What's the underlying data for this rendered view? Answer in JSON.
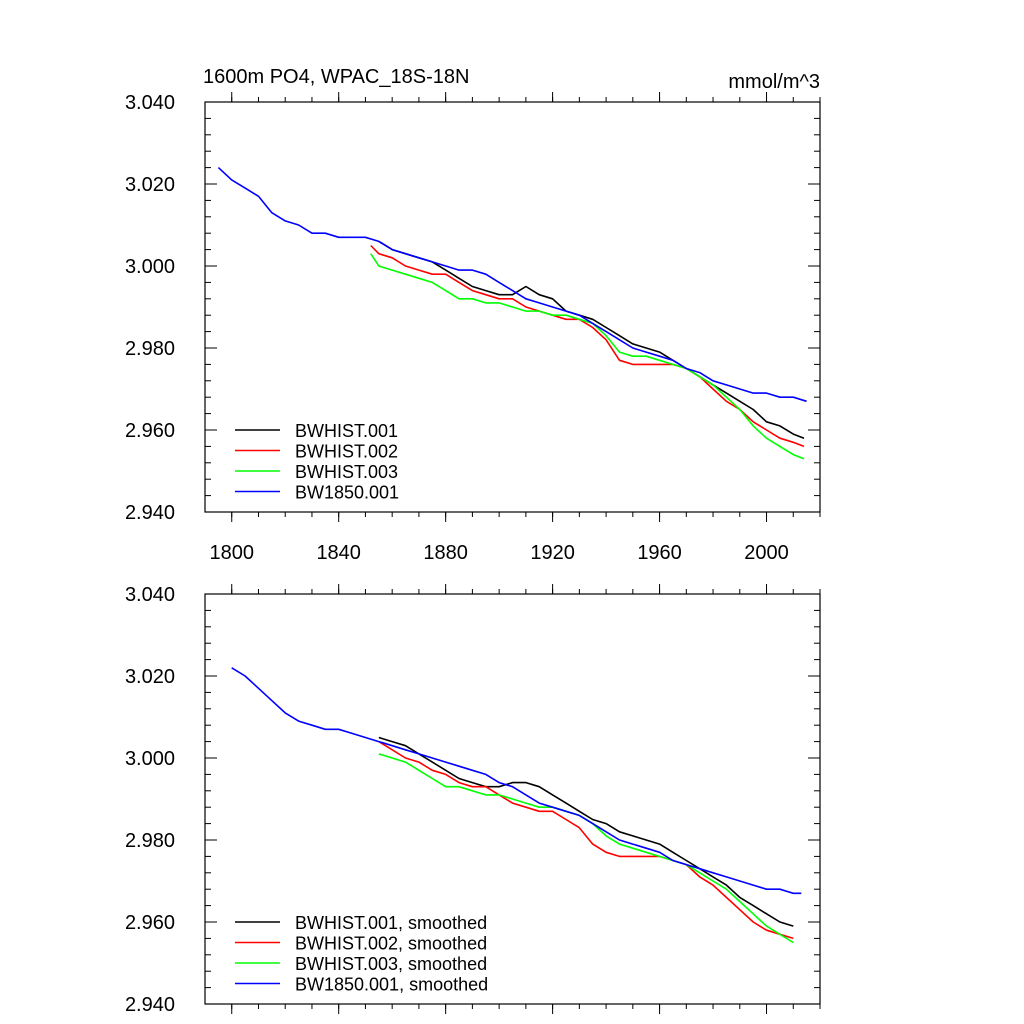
{
  "figure": {
    "title_left": "1600m PO4, WPAC_18S-18N",
    "title_right": "mmol/m^3"
  },
  "chart_data": [
    {
      "type": "line",
      "title": "1600m PO4, WPAC_18S-18N",
      "units": "mmol/m^3",
      "xlim": [
        1790,
        2020
      ],
      "ylim": [
        2.94,
        3.04
      ],
      "xticks": [
        1800,
        1840,
        1880,
        1920,
        1960,
        2000
      ],
      "xtick_labels": [
        "1800",
        "1840",
        "1880",
        "1920",
        "1960",
        "2000"
      ],
      "yticks": [
        2.94,
        2.96,
        2.98,
        3.0,
        3.02,
        3.04
      ],
      "ytick_labels": [
        "2.940",
        "2.960",
        "2.980",
        "3.000",
        "3.020",
        "3.040"
      ],
      "grid": false,
      "legend_position": "bottom-left",
      "series": [
        {
          "name": "BWHIST.001",
          "color": "#000000",
          "x": [
            1855,
            1860,
            1865,
            1870,
            1875,
            1880,
            1885,
            1890,
            1895,
            1900,
            1905,
            1910,
            1915,
            1920,
            1925,
            1930,
            1935,
            1940,
            1945,
            1950,
            1955,
            1960,
            1965,
            1970,
            1975,
            1980,
            1985,
            1990,
            1995,
            2000,
            2005,
            2010,
            2014
          ],
          "y": [
            3.006,
            3.004,
            3.003,
            3.002,
            3.001,
            2.999,
            2.997,
            2.995,
            2.994,
            2.993,
            2.993,
            2.995,
            2.993,
            2.992,
            2.989,
            2.988,
            2.987,
            2.985,
            2.983,
            2.981,
            2.98,
            2.979,
            2.977,
            2.975,
            2.973,
            2.971,
            2.969,
            2.967,
            2.965,
            2.962,
            2.961,
            2.959,
            2.958
          ]
        },
        {
          "name": "BWHIST.002",
          "color": "#ff0000",
          "x": [
            1852,
            1855,
            1860,
            1865,
            1870,
            1875,
            1880,
            1885,
            1890,
            1895,
            1900,
            1905,
            1910,
            1915,
            1920,
            1925,
            1930,
            1935,
            1940,
            1945,
            1950,
            1955,
            1960,
            1965,
            1970,
            1975,
            1980,
            1985,
            1990,
            1995,
            2000,
            2005,
            2010,
            2014
          ],
          "y": [
            3.005,
            3.003,
            3.002,
            3.0,
            2.999,
            2.998,
            2.998,
            2.996,
            2.994,
            2.993,
            2.992,
            2.992,
            2.99,
            2.989,
            2.988,
            2.987,
            2.987,
            2.985,
            2.982,
            2.977,
            2.976,
            2.976,
            2.976,
            2.976,
            2.975,
            2.973,
            2.97,
            2.967,
            2.965,
            2.962,
            2.96,
            2.958,
            2.957,
            2.956
          ]
        },
        {
          "name": "BWHIST.003",
          "color": "#00ff00",
          "x": [
            1852,
            1855,
            1860,
            1865,
            1870,
            1875,
            1880,
            1885,
            1890,
            1895,
            1900,
            1905,
            1910,
            1915,
            1920,
            1925,
            1930,
            1935,
            1940,
            1945,
            1950,
            1955,
            1960,
            1965,
            1970,
            1975,
            1980,
            1985,
            1990,
            1995,
            2000,
            2005,
            2010,
            2014
          ],
          "y": [
            3.003,
            3.0,
            2.999,
            2.998,
            2.997,
            2.996,
            2.994,
            2.992,
            2.992,
            2.991,
            2.991,
            2.99,
            2.989,
            2.989,
            2.988,
            2.988,
            2.987,
            2.986,
            2.983,
            2.979,
            2.978,
            2.978,
            2.977,
            2.976,
            2.975,
            2.973,
            2.971,
            2.968,
            2.965,
            2.961,
            2.958,
            2.956,
            2.954,
            2.953
          ]
        },
        {
          "name": "BW1850.001",
          "color": "#0000ff",
          "x": [
            1795,
            1800,
            1805,
            1810,
            1815,
            1820,
            1825,
            1830,
            1835,
            1840,
            1845,
            1850,
            1855,
            1860,
            1865,
            1870,
            1875,
            1880,
            1885,
            1890,
            1895,
            1900,
            1905,
            1910,
            1915,
            1920,
            1925,
            1930,
            1935,
            1940,
            1945,
            1950,
            1955,
            1960,
            1965,
            1970,
            1975,
            1980,
            1985,
            1990,
            1995,
            2000,
            2005,
            2010,
            2015
          ],
          "y": [
            3.024,
            3.021,
            3.019,
            3.017,
            3.013,
            3.011,
            3.01,
            3.008,
            3.008,
            3.007,
            3.007,
            3.007,
            3.006,
            3.004,
            3.003,
            3.002,
            3.001,
            3.0,
            2.999,
            2.999,
            2.998,
            2.996,
            2.994,
            2.992,
            2.991,
            2.99,
            2.989,
            2.988,
            2.986,
            2.984,
            2.982,
            2.98,
            2.979,
            2.978,
            2.977,
            2.975,
            2.974,
            2.972,
            2.971,
            2.97,
            2.969,
            2.969,
            2.968,
            2.968,
            2.967
          ]
        }
      ]
    },
    {
      "type": "line",
      "xlim": [
        1790,
        2020
      ],
      "ylim": [
        2.94,
        3.04
      ],
      "yticks": [
        2.94,
        2.96,
        2.98,
        3.0,
        3.02,
        3.04
      ],
      "ytick_labels": [
        "2.940",
        "2.960",
        "2.980",
        "3.000",
        "3.020",
        "3.040"
      ],
      "xticks": [
        1800,
        1840,
        1880,
        1920,
        1960,
        2000
      ],
      "grid": false,
      "legend_position": "bottom-left",
      "series": [
        {
          "name": "BWHIST.001, smoothed",
          "color": "#000000",
          "x": [
            1855,
            1860,
            1865,
            1870,
            1875,
            1880,
            1885,
            1890,
            1895,
            1900,
            1905,
            1910,
            1915,
            1920,
            1925,
            1930,
            1935,
            1940,
            1945,
            1950,
            1955,
            1960,
            1965,
            1970,
            1975,
            1980,
            1985,
            1990,
            1995,
            2000,
            2005,
            2010
          ],
          "y": [
            3.005,
            3.004,
            3.003,
            3.001,
            2.999,
            2.997,
            2.995,
            2.994,
            2.993,
            2.993,
            2.994,
            2.994,
            2.993,
            2.991,
            2.989,
            2.987,
            2.985,
            2.984,
            2.982,
            2.981,
            2.98,
            2.979,
            2.977,
            2.975,
            2.973,
            2.971,
            2.969,
            2.966,
            2.964,
            2.962,
            2.96,
            2.959
          ]
        },
        {
          "name": "BWHIST.002, smoothed",
          "color": "#ff0000",
          "x": [
            1855,
            1860,
            1865,
            1870,
            1875,
            1880,
            1885,
            1890,
            1895,
            1900,
            1905,
            1910,
            1915,
            1920,
            1925,
            1930,
            1935,
            1940,
            1945,
            1950,
            1955,
            1960,
            1965,
            1970,
            1975,
            1980,
            1985,
            1990,
            1995,
            2000,
            2005,
            2010
          ],
          "y": [
            3.004,
            3.002,
            3.0,
            2.999,
            2.997,
            2.996,
            2.994,
            2.993,
            2.993,
            2.991,
            2.989,
            2.988,
            2.987,
            2.987,
            2.985,
            2.983,
            2.979,
            2.977,
            2.976,
            2.976,
            2.976,
            2.976,
            2.975,
            2.974,
            2.971,
            2.969,
            2.966,
            2.963,
            2.96,
            2.958,
            2.957,
            2.956
          ]
        },
        {
          "name": "BWHIST.003, smoothed",
          "color": "#00ff00",
          "x": [
            1855,
            1860,
            1865,
            1870,
            1875,
            1880,
            1885,
            1890,
            1895,
            1900,
            1905,
            1910,
            1915,
            1920,
            1925,
            1930,
            1935,
            1940,
            1945,
            1950,
            1955,
            1960,
            1965,
            1970,
            1975,
            1980,
            1985,
            1990,
            1995,
            2000,
            2005,
            2010
          ],
          "y": [
            3.001,
            3.0,
            2.999,
            2.997,
            2.995,
            2.993,
            2.993,
            2.992,
            2.991,
            2.991,
            2.99,
            2.989,
            2.988,
            2.988,
            2.987,
            2.986,
            2.984,
            2.981,
            2.979,
            2.978,
            2.977,
            2.976,
            2.975,
            2.974,
            2.972,
            2.97,
            2.968,
            2.965,
            2.962,
            2.959,
            2.957,
            2.955
          ]
        },
        {
          "name": "BW1850.001, smoothed",
          "color": "#0000ff",
          "x": [
            1800,
            1805,
            1810,
            1815,
            1820,
            1825,
            1830,
            1835,
            1840,
            1845,
            1850,
            1855,
            1860,
            1865,
            1870,
            1875,
            1880,
            1885,
            1890,
            1895,
            1900,
            1905,
            1910,
            1915,
            1920,
            1925,
            1930,
            1935,
            1940,
            1945,
            1950,
            1955,
            1960,
            1965,
            1970,
            1975,
            1980,
            1985,
            1990,
            1995,
            2000,
            2005,
            2010,
            2013
          ],
          "y": [
            3.022,
            3.02,
            3.017,
            3.014,
            3.011,
            3.009,
            3.008,
            3.007,
            3.007,
            3.006,
            3.005,
            3.004,
            3.003,
            3.002,
            3.001,
            3.0,
            2.999,
            2.998,
            2.997,
            2.996,
            2.994,
            2.993,
            2.991,
            2.989,
            2.988,
            2.987,
            2.986,
            2.984,
            2.982,
            2.98,
            2.979,
            2.978,
            2.977,
            2.975,
            2.974,
            2.973,
            2.972,
            2.971,
            2.97,
            2.969,
            2.968,
            2.968,
            2.967,
            2.967
          ]
        }
      ]
    }
  ]
}
